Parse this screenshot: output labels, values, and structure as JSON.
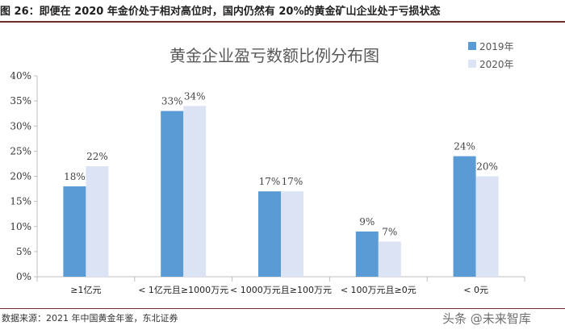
{
  "figure": {
    "title": "图 26：即便在 2020 年金价处于相对高位时，国内仍然有 20%的黄金矿山企业处于亏损状态",
    "source": "数据来源：2021 年中国黄金年鉴，东北证券",
    "watermark": "头条 @未来智库"
  },
  "colors": {
    "series_2019": "#5b9bd5",
    "series_2020": "#dbe3f4",
    "axis": "#bfbfbf",
    "rule": "#6b2c2c"
  },
  "chart_data": {
    "type": "bar",
    "title": "黄金企业盈亏数额比例分布图",
    "xlabel": "",
    "ylabel": "",
    "ylim": [
      0,
      40
    ],
    "yticks": [
      0,
      5,
      10,
      15,
      20,
      25,
      30,
      35,
      40
    ],
    "ytick_labels": [
      "0%",
      "5%",
      "10%",
      "15%",
      "20%",
      "25%",
      "30%",
      "35%",
      "40%"
    ],
    "categories": [
      "≥1亿元",
      "< 1亿元且≥1000万元",
      "< 1000万元且≥100万元",
      "< 100万元且≥0元",
      "< 0元"
    ],
    "series": [
      {
        "name": "2019年",
        "values": [
          18,
          33,
          17,
          9,
          24
        ],
        "labels": [
          "18%",
          "33%",
          "17%",
          "9%",
          "24%"
        ]
      },
      {
        "name": "2020年",
        "values": [
          22,
          34,
          17,
          7,
          20
        ],
        "labels": [
          "22%",
          "34%",
          "17%",
          "7%",
          "20%"
        ]
      }
    ],
    "legend_position": "top-right",
    "grid": false
  }
}
